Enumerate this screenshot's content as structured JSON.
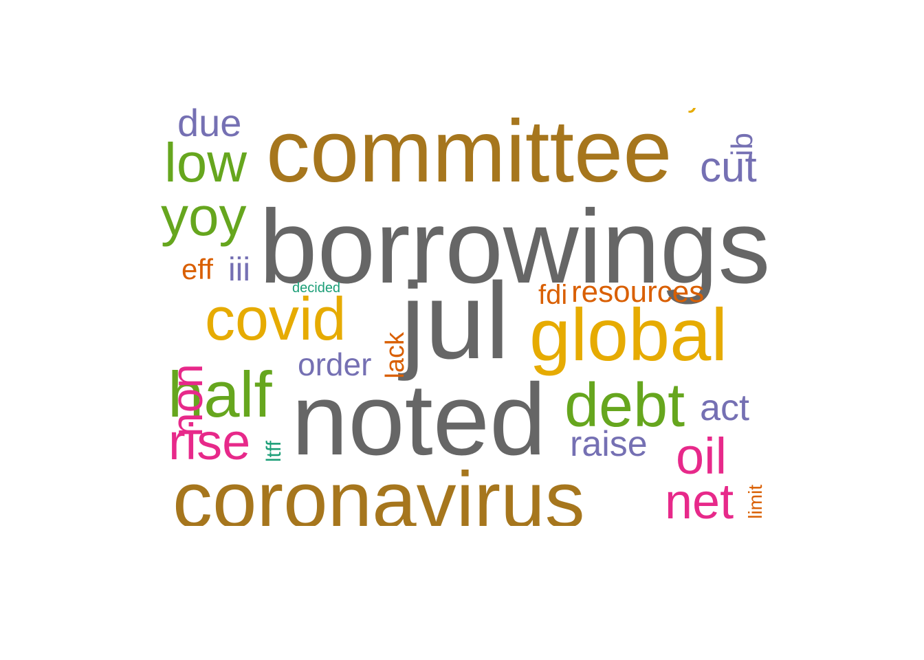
{
  "colors": {
    "gray": "#666666",
    "brown": "#A6761D",
    "gold": "#E6AB02",
    "green": "#66A61E",
    "purple": "#7570B3",
    "orange": "#D95F02",
    "pink": "#E7298A",
    "teal": "#1B9E77"
  },
  "words": [
    {
      "text": "borrowings",
      "color": "gray",
      "rotated": false
    },
    {
      "text": "noted",
      "color": "gray",
      "rotated": false
    },
    {
      "text": "jul",
      "color": "gray",
      "rotated": false
    },
    {
      "text": "committee",
      "color": "brown",
      "rotated": false
    },
    {
      "text": "coronavirus",
      "color": "brown",
      "rotated": false
    },
    {
      "text": "global",
      "color": "gold",
      "rotated": false
    },
    {
      "text": "covid",
      "color": "gold",
      "rotated": false
    },
    {
      "text": "debt",
      "color": "green",
      "rotated": false
    },
    {
      "text": "half",
      "color": "green",
      "rotated": false
    },
    {
      "text": "low",
      "color": "green",
      "rotated": false
    },
    {
      "text": "yoy",
      "color": "green",
      "rotated": false
    },
    {
      "text": "due",
      "color": "purple",
      "rotated": false
    },
    {
      "text": "cut",
      "color": "purple",
      "rotated": false
    },
    {
      "text": "order",
      "color": "purple",
      "rotated": false
    },
    {
      "text": "raise",
      "color": "purple",
      "rotated": false
    },
    {
      "text": "act",
      "color": "purple",
      "rotated": false
    },
    {
      "text": "iii",
      "color": "purple",
      "rotated": false
    },
    {
      "text": "ib",
      "color": "purple",
      "rotated": true
    },
    {
      "text": "resources",
      "color": "orange",
      "rotated": false
    },
    {
      "text": "fdi",
      "color": "orange",
      "rotated": false
    },
    {
      "text": "eff",
      "color": "orange",
      "rotated": false
    },
    {
      "text": "lack",
      "color": "orange",
      "rotated": true
    },
    {
      "text": "limit",
      "color": "orange",
      "rotated": true
    },
    {
      "text": "es",
      "color": "orange",
      "rotated": true
    },
    {
      "text": "non",
      "color": "pink",
      "rotated": true
    },
    {
      "text": "rise",
      "color": "pink",
      "rotated": false
    },
    {
      "text": "oil",
      "color": "pink",
      "rotated": false
    },
    {
      "text": "net",
      "color": "pink",
      "rotated": false
    },
    {
      "text": "ltff",
      "color": "teal",
      "rotated": true
    },
    {
      "text": "decided",
      "color": "teal",
      "rotated": false
    },
    {
      "text": "y",
      "color": "gold",
      "rotated": false
    }
  ]
}
